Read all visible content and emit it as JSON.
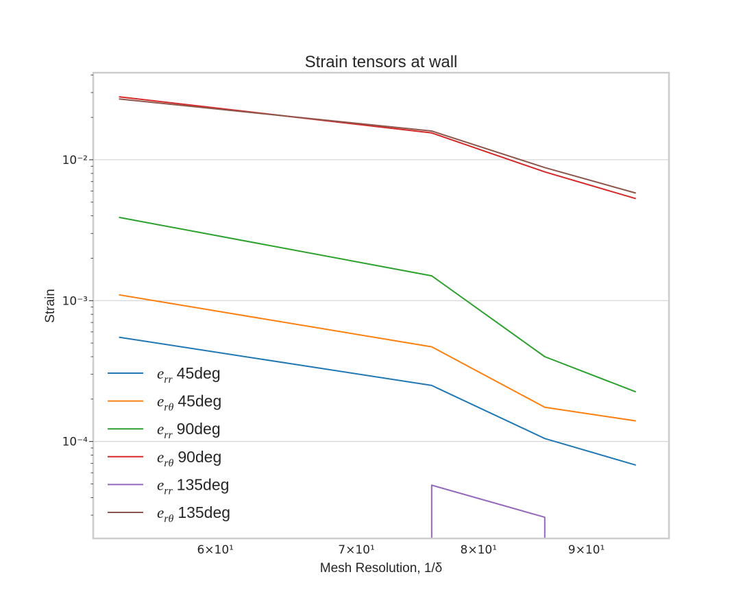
{
  "chart_data": {
    "type": "line",
    "title": "Strain tensors at wall",
    "xlabel": "Mesh Resolution, 1/δ",
    "ylabel": "Strain",
    "xscale": "log",
    "yscale": "log",
    "xlim": [
      52.5,
      98.5
    ],
    "ylim": [
      2.05e-05,
      0.0415
    ],
    "x": [
      54,
      76,
      86,
      95
    ],
    "x_tick_labels": [
      "6×10¹",
      "7×10¹",
      "8×10¹",
      "9×10¹"
    ],
    "x_tick_values": [
      60,
      70,
      80,
      90
    ],
    "y_tick_labels": [
      "10⁻²",
      "10⁻³",
      "10⁻⁴"
    ],
    "y_tick_values": [
      0.01,
      0.001,
      0.0001
    ],
    "grid": "horizontal",
    "legend_position": "lower-left",
    "series": [
      {
        "name": "e_rr 45deg",
        "legend_text": "45deg",
        "sub": "rr",
        "color": "#1f77b4",
        "values": [
          0.00055,
          0.00025,
          0.000105,
          6.8e-05
        ]
      },
      {
        "name": "e_rθ 45deg",
        "legend_text": "45deg",
        "sub": "rθ",
        "color": "#ff7f0e",
        "values": [
          0.0011,
          0.00047,
          0.000175,
          0.00014
        ]
      },
      {
        "name": "e_rr 90deg",
        "legend_text": "90deg",
        "sub": "rr",
        "color": "#2ca02c",
        "values": [
          0.0039,
          0.0015,
          0.0004,
          0.000225
        ]
      },
      {
        "name": "e_rθ 90deg",
        "legend_text": "90deg",
        "sub": "rθ",
        "color": "#d62728",
        "values": [
          0.028,
          0.0155,
          0.0082,
          0.0053
        ]
      },
      {
        "name": "e_rr 135deg",
        "legend_text": "135deg",
        "sub": "rr",
        "color": "#9467bd",
        "values": [
          null,
          4.9e-05,
          2.9e-05,
          null
        ],
        "drops_to_axis": true
      },
      {
        "name": "e_rθ 135deg",
        "legend_text": "135deg",
        "sub": "rθ",
        "color": "#8c564b",
        "values": [
          0.027,
          0.016,
          0.0088,
          0.0058
        ]
      }
    ]
  }
}
